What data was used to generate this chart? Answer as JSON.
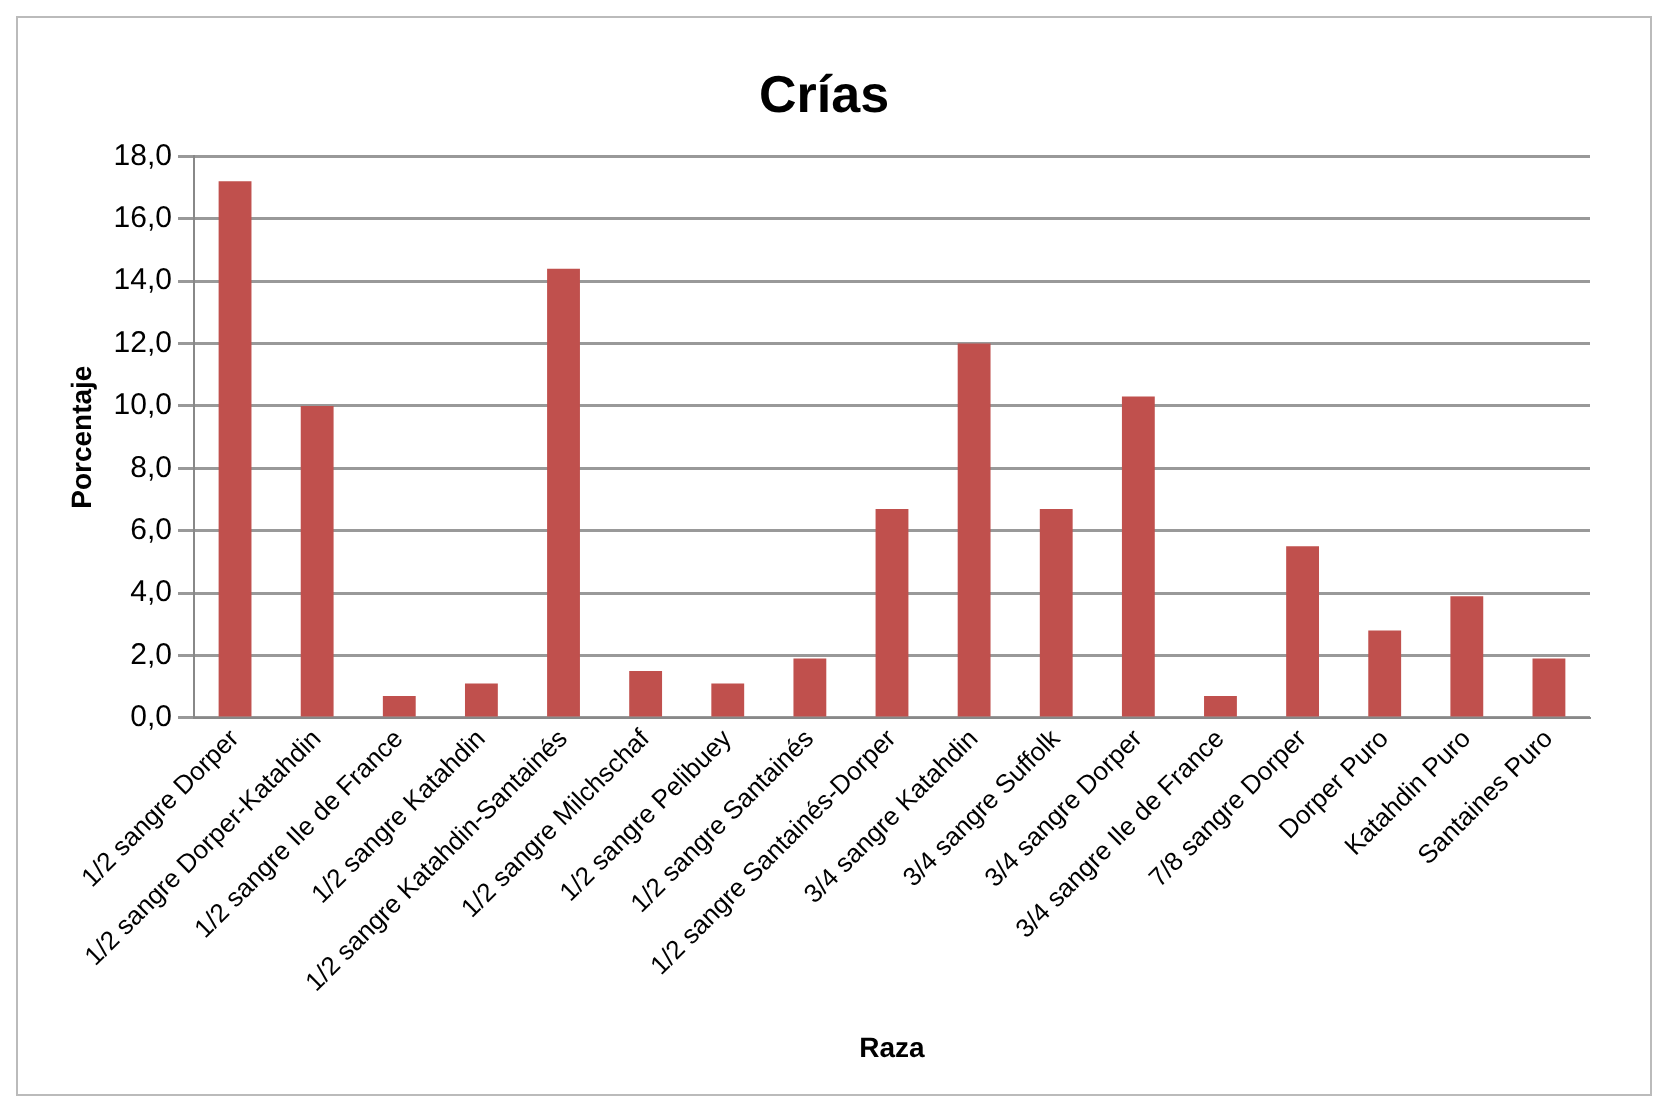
{
  "chart_data": {
    "type": "bar",
    "title": "Crías",
    "xlabel": "Raza",
    "ylabel": "Porcentaje",
    "categories": [
      "1/2 sangre Dorper",
      "1/2 sangre Dorper-Katahdin",
      "1/2 sangre Ile de France",
      "1/2 sangre Katahdin",
      "1/2 sangre Katahdin-Santainés",
      "1/2 sangre Milchschaf",
      "1/2 sangre Pelibuey",
      "1/2 sangre Santainés",
      "1/2 sangre Santainés-Dorper",
      "3/4 sangre Katahdin",
      "3/4 sangre Suffolk",
      "3/4 sangre Dorper",
      "3/4 sangre Ile de France",
      "7/8 sangre Dorper",
      "Dorper Puro",
      "Katahdin Puro",
      "Santaines Puro"
    ],
    "values": [
      17.2,
      10.0,
      0.7,
      1.1,
      14.4,
      1.5,
      1.1,
      1.9,
      6.7,
      12.0,
      6.7,
      10.3,
      0.7,
      5.5,
      2.8,
      3.9,
      1.9
    ],
    "color": "#c0504d",
    "ylim": [
      0,
      18
    ],
    "yticks": [
      {
        "value": 0,
        "label": "0,0"
      },
      {
        "value": 2,
        "label": "2,0"
      },
      {
        "value": 4,
        "label": "4,0"
      },
      {
        "value": 6,
        "label": "6,0"
      },
      {
        "value": 8,
        "label": "8,0"
      },
      {
        "value": 10,
        "label": "10,0"
      },
      {
        "value": 12,
        "label": "12,0"
      },
      {
        "value": 14,
        "label": "14,0"
      },
      {
        "value": 16,
        "label": "16,0"
      },
      {
        "value": 18,
        "label": "18,0"
      }
    ],
    "grid": "y",
    "legend": false
  }
}
